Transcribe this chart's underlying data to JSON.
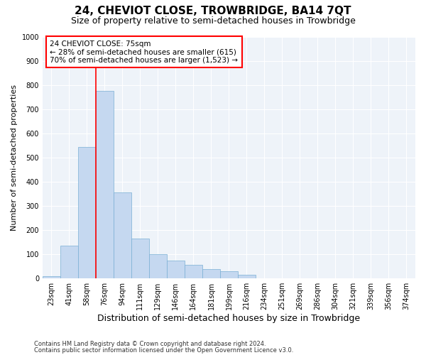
{
  "title": "24, CHEVIOT CLOSE, TROWBRIDGE, BA14 7QT",
  "subtitle": "Size of property relative to semi-detached houses in Trowbridge",
  "xlabel": "Distribution of semi-detached houses by size in Trowbridge",
  "ylabel": "Number of semi-detached properties",
  "footnote1": "Contains HM Land Registry data © Crown copyright and database right 2024.",
  "footnote2": "Contains public sector information licensed under the Open Government Licence v3.0.",
  "bin_labels": [
    "23sqm",
    "41sqm",
    "58sqm",
    "76sqm",
    "94sqm",
    "111sqm",
    "129sqm",
    "146sqm",
    "164sqm",
    "181sqm",
    "199sqm",
    "216sqm",
    "234sqm",
    "251sqm",
    "269sqm",
    "286sqm",
    "304sqm",
    "321sqm",
    "339sqm",
    "356sqm",
    "374sqm"
  ],
  "bar_values": [
    10,
    135,
    545,
    775,
    355,
    165,
    100,
    75,
    55,
    40,
    30,
    15,
    0,
    0,
    0,
    0,
    0,
    0,
    0,
    0,
    0
  ],
  "bar_color": "#c5d8f0",
  "bar_edge_color": "#7aafd4",
  "property_line_color": "red",
  "annotation_title": "24 CHEVIOT CLOSE: 75sqm",
  "annotation_line1": "← 28% of semi-detached houses are smaller (615)",
  "annotation_line2": "70% of semi-detached houses are larger (1,523) →",
  "annotation_box_color": "white",
  "annotation_box_edge_color": "red",
  "ylim": [
    0,
    1000
  ],
  "yticks": [
    0,
    100,
    200,
    300,
    400,
    500,
    600,
    700,
    800,
    900,
    1000
  ],
  "background_color": "#eef3f9",
  "title_fontsize": 11,
  "subtitle_fontsize": 9,
  "xlabel_fontsize": 9,
  "ylabel_fontsize": 8,
  "tick_fontsize": 7,
  "footnote_fontsize": 6
}
